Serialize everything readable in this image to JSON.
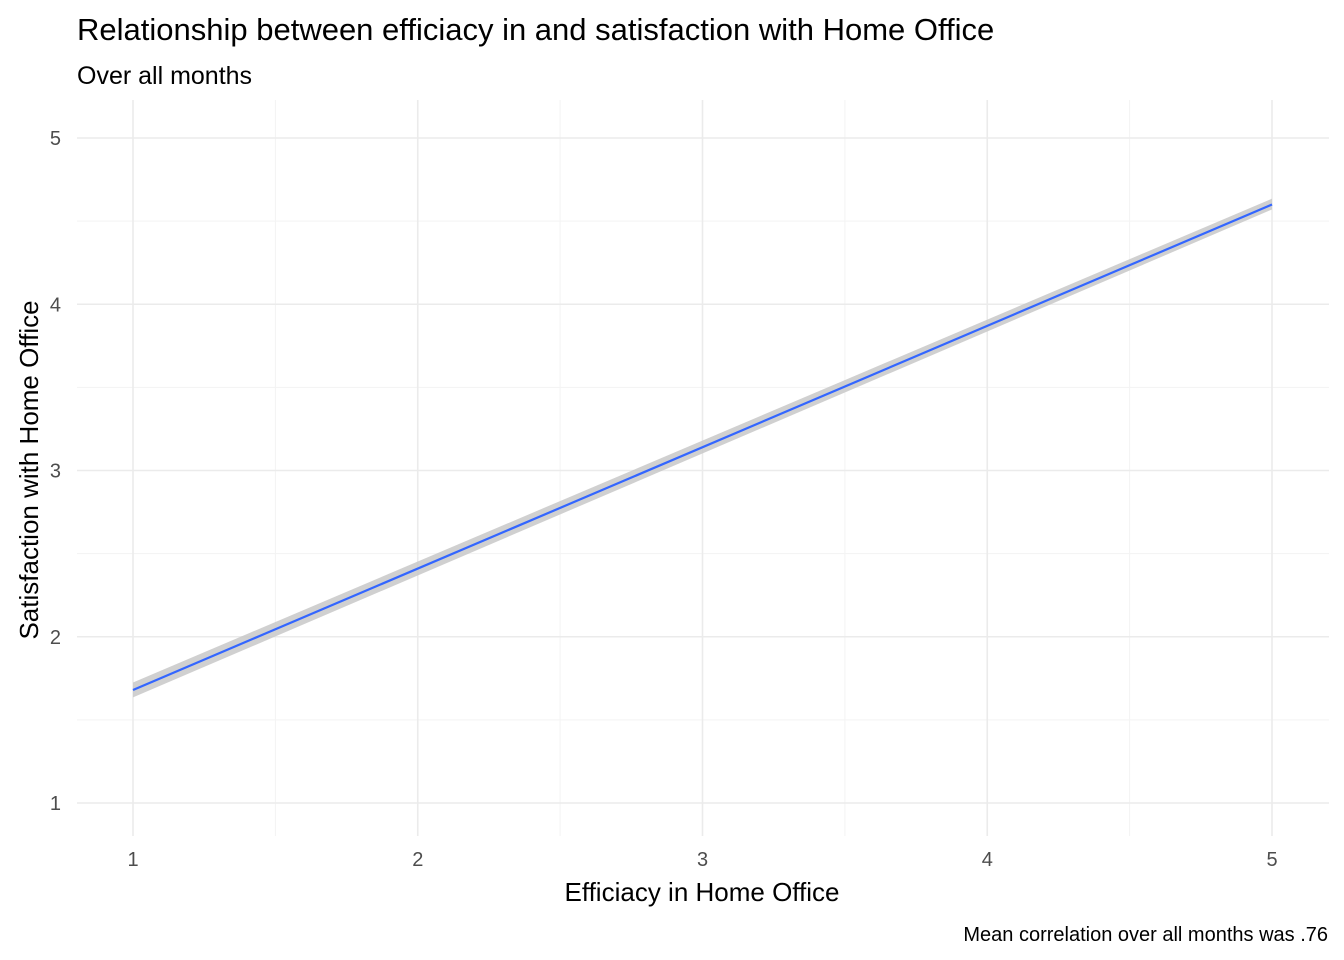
{
  "chart_data": {
    "type": "line",
    "title": "Relationship between efficiacy in and satisfaction with Home Office",
    "subtitle": "Over all months",
    "xlabel": "Efficiacy in Home Office",
    "ylabel": "Satisfaction with Home Office",
    "caption": "Mean correlation over all months was .76",
    "xlim": [
      0.8,
      5.15
    ],
    "ylim": [
      0.8,
      5.2
    ],
    "x_ticks": [
      1,
      2,
      3,
      4,
      5
    ],
    "y_ticks": [
      1,
      2,
      3,
      4,
      5
    ],
    "x_tick_labels": [
      "1",
      "2",
      "3",
      "4",
      "5"
    ],
    "y_tick_labels": [
      "1",
      "2",
      "3",
      "4",
      "5"
    ],
    "grid": true,
    "series": [
      {
        "x": [
          1,
          5
        ],
        "y": [
          1.68,
          4.6
        ],
        "ci_lower": [
          1.635,
          4.57
        ],
        "ci_upper": [
          1.725,
          4.635
        ],
        "color": "#3366ff",
        "band_color": "#c8c8c8"
      }
    ]
  }
}
